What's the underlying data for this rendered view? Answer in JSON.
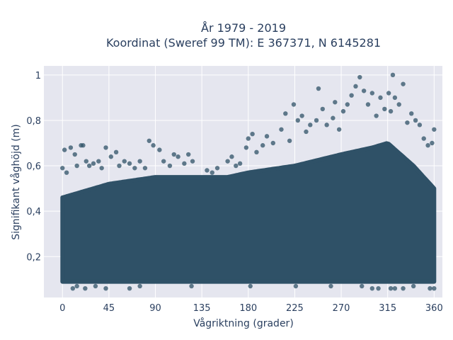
{
  "chart_data": {
    "type": "scatter",
    "title_line1": "År 1979 - 2019",
    "title_line2": "Koordinat (Sweref 99 TM): E 367371, N 6145281",
    "xlabel": "Vågriktning (grader)",
    "ylabel": "Signifikant våghöjd (m)",
    "xlim": [
      -18,
      368
    ],
    "ylim": [
      0.02,
      1.04
    ],
    "x_ticks": [
      0,
      45,
      90,
      135,
      180,
      225,
      270,
      315,
      360
    ],
    "x_tick_labels": [
      "0",
      "45",
      "90",
      "135",
      "180",
      "225",
      "270",
      "315",
      "360"
    ],
    "y_ticks": [
      0.2,
      0.4,
      0.6,
      0.8,
      1
    ],
    "y_tick_labels": [
      "0,2",
      "0,4",
      "0,6",
      "0,8",
      "1"
    ],
    "grid": true,
    "marker_color": "#2f5167",
    "plot_background": "#e5e6ef",
    "dense_band_upper": [
      [
        0,
        0.46
      ],
      [
        45,
        0.52
      ],
      [
        90,
        0.55
      ],
      [
        135,
        0.55
      ],
      [
        160,
        0.55
      ],
      [
        180,
        0.57
      ],
      [
        225,
        0.6
      ],
      [
        270,
        0.65
      ],
      [
        300,
        0.68
      ],
      [
        315,
        0.7
      ],
      [
        340,
        0.6
      ],
      [
        360,
        0.5
      ]
    ],
    "dense_band_lower": [
      [
        0,
        0.09
      ],
      [
        360,
        0.09
      ]
    ],
    "outliers": [
      [
        0,
        0.59
      ],
      [
        2,
        0.67
      ],
      [
        4,
        0.57
      ],
      [
        8,
        0.68
      ],
      [
        12,
        0.65
      ],
      [
        14,
        0.6
      ],
      [
        18,
        0.69
      ],
      [
        20,
        0.69
      ],
      [
        23,
        0.62
      ],
      [
        26,
        0.6
      ],
      [
        30,
        0.61
      ],
      [
        35,
        0.62
      ],
      [
        38,
        0.59
      ],
      [
        42,
        0.68
      ],
      [
        47,
        0.64
      ],
      [
        52,
        0.66
      ],
      [
        55,
        0.6
      ],
      [
        60,
        0.62
      ],
      [
        65,
        0.61
      ],
      [
        70,
        0.59
      ],
      [
        75,
        0.62
      ],
      [
        80,
        0.59
      ],
      [
        84,
        0.71
      ],
      [
        88,
        0.69
      ],
      [
        94,
        0.67
      ],
      [
        98,
        0.62
      ],
      [
        104,
        0.6
      ],
      [
        108,
        0.65
      ],
      [
        112,
        0.64
      ],
      [
        118,
        0.61
      ],
      [
        122,
        0.65
      ],
      [
        126,
        0.62
      ],
      [
        140,
        0.58
      ],
      [
        145,
        0.57
      ],
      [
        150,
        0.59
      ],
      [
        160,
        0.62
      ],
      [
        164,
        0.64
      ],
      [
        168,
        0.6
      ],
      [
        172,
        0.61
      ],
      [
        178,
        0.68
      ],
      [
        180,
        0.72
      ],
      [
        184,
        0.74
      ],
      [
        188,
        0.66
      ],
      [
        194,
        0.69
      ],
      [
        198,
        0.73
      ],
      [
        204,
        0.7
      ],
      [
        212,
        0.76
      ],
      [
        216,
        0.83
      ],
      [
        220,
        0.71
      ],
      [
        224,
        0.87
      ],
      [
        228,
        0.8
      ],
      [
        232,
        0.82
      ],
      [
        236,
        0.75
      ],
      [
        240,
        0.78
      ],
      [
        246,
        0.8
      ],
      [
        248,
        0.94
      ],
      [
        252,
        0.85
      ],
      [
        256,
        0.78
      ],
      [
        262,
        0.81
      ],
      [
        264,
        0.88
      ],
      [
        268,
        0.76
      ],
      [
        272,
        0.84
      ],
      [
        276,
        0.87
      ],
      [
        280,
        0.91
      ],
      [
        284,
        0.95
      ],
      [
        288,
        0.99
      ],
      [
        292,
        0.93
      ],
      [
        296,
        0.87
      ],
      [
        300,
        0.92
      ],
      [
        304,
        0.82
      ],
      [
        308,
        0.9
      ],
      [
        312,
        0.85
      ],
      [
        316,
        0.92
      ],
      [
        318,
        0.84
      ],
      [
        320,
        1.0
      ],
      [
        322,
        0.9
      ],
      [
        326,
        0.87
      ],
      [
        330,
        0.96
      ],
      [
        334,
        0.79
      ],
      [
        338,
        0.83
      ],
      [
        342,
        0.8
      ],
      [
        346,
        0.78
      ],
      [
        350,
        0.72
      ],
      [
        354,
        0.69
      ],
      [
        358,
        0.7
      ],
      [
        360,
        0.76
      ]
    ],
    "low_outliers": [
      [
        10,
        0.06
      ],
      [
        14,
        0.07
      ],
      [
        22,
        0.06
      ],
      [
        32,
        0.07
      ],
      [
        42,
        0.06
      ],
      [
        65,
        0.06
      ],
      [
        75,
        0.07
      ],
      [
        125,
        0.07
      ],
      [
        182,
        0.07
      ],
      [
        226,
        0.07
      ],
      [
        260,
        0.07
      ],
      [
        290,
        0.07
      ],
      [
        300,
        0.06
      ],
      [
        306,
        0.06
      ],
      [
        318,
        0.06
      ],
      [
        322,
        0.06
      ],
      [
        330,
        0.06
      ],
      [
        340,
        0.07
      ],
      [
        356,
        0.06
      ],
      [
        360,
        0.06
      ]
    ]
  }
}
